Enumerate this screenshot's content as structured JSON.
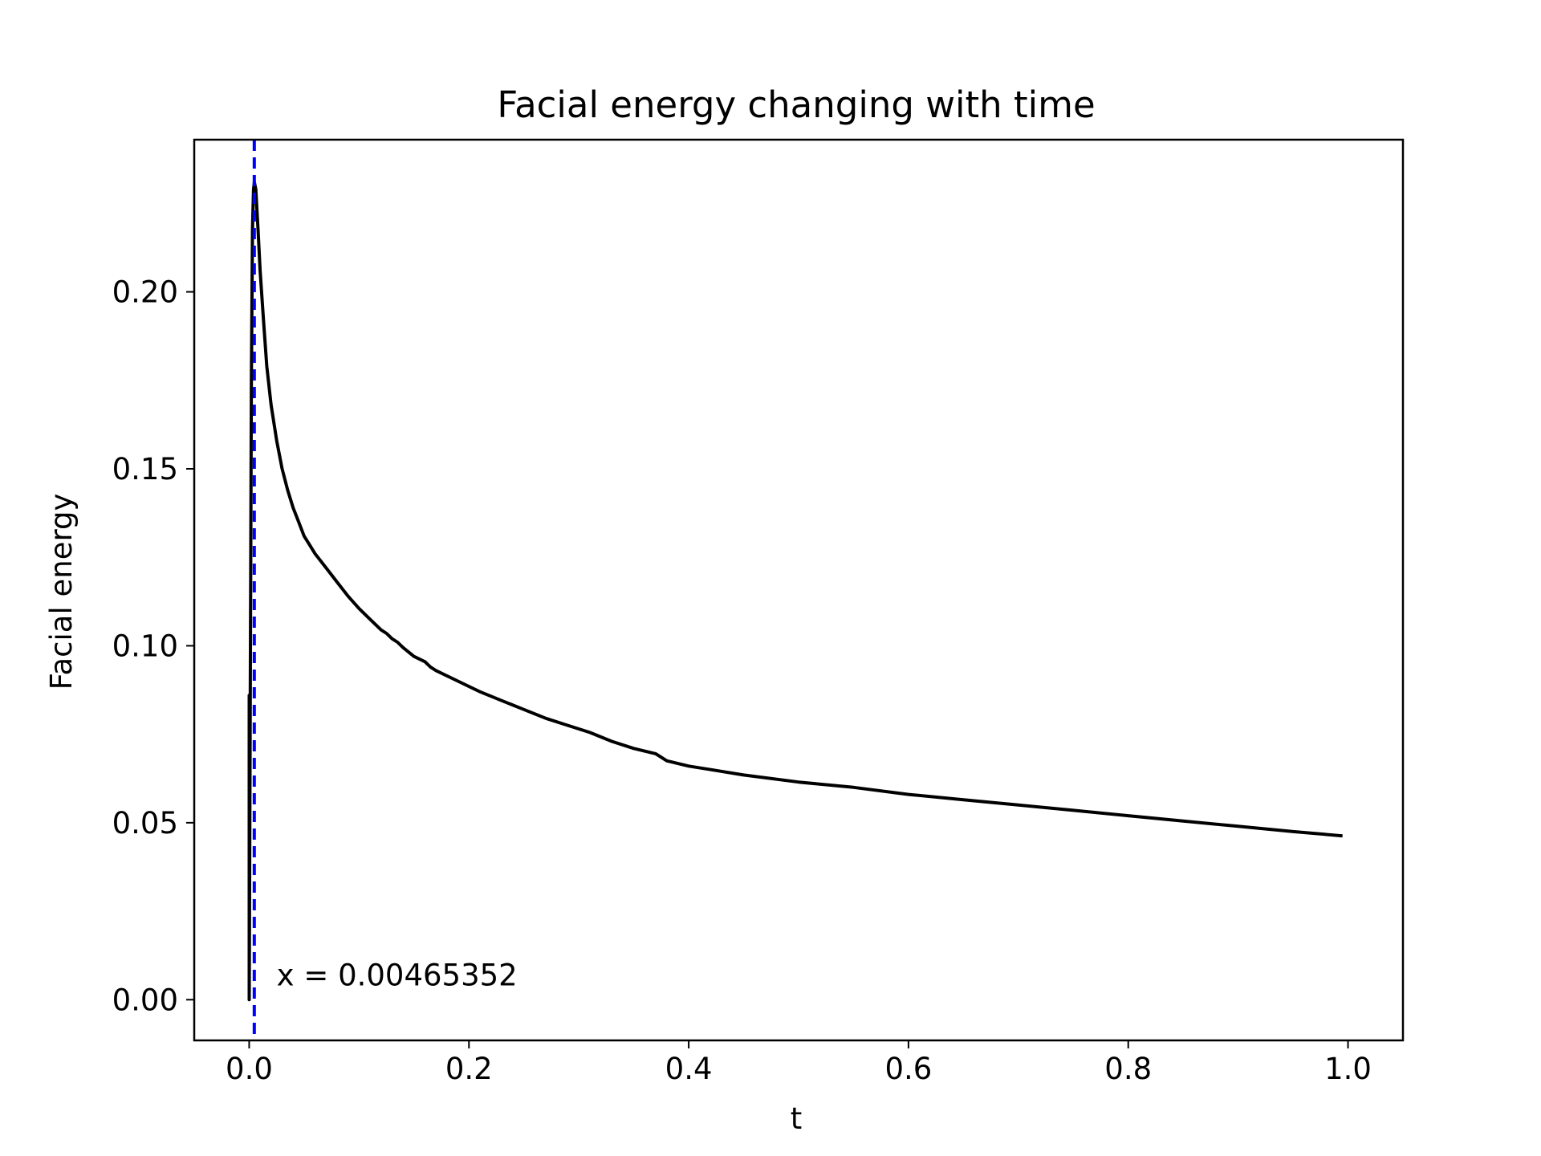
{
  "chart_data": {
    "type": "line",
    "title": "Facial energy changing with time",
    "xlabel": "t",
    "ylabel": "Facial energy",
    "xlim": [
      -0.05,
      1.05
    ],
    "ylim": [
      -0.0115,
      0.243
    ],
    "xticks": [
      0.0,
      0.2,
      0.4,
      0.6,
      0.8,
      1.0
    ],
    "xtick_labels": [
      "0.0",
      "0.2",
      "0.4",
      "0.6",
      "0.8",
      "1.0"
    ],
    "yticks": [
      0.0,
      0.05,
      0.1,
      0.15,
      0.2
    ],
    "ytick_labels": [
      "0.00",
      "0.05",
      "0.10",
      "0.15",
      "0.20"
    ],
    "grid": false,
    "series": [
      {
        "color": "#000000",
        "x": [
          0.0,
          0.0,
          0.0,
          0.001,
          0.002,
          0.003,
          0.004,
          0.0047,
          0.006,
          0.008,
          0.01,
          0.013,
          0.016,
          0.02,
          0.025,
          0.03,
          0.035,
          0.04,
          0.045,
          0.05,
          0.055,
          0.06,
          0.07,
          0.08,
          0.09,
          0.1,
          0.11,
          0.12,
          0.125,
          0.13,
          0.135,
          0.14,
          0.15,
          0.16,
          0.165,
          0.17,
          0.19,
          0.21,
          0.23,
          0.25,
          0.27,
          0.29,
          0.31,
          0.33,
          0.35,
          0.37,
          0.375,
          0.38,
          0.4,
          0.42,
          0.45,
          0.5,
          0.55,
          0.6,
          0.65,
          0.7,
          0.75,
          0.8,
          0.85,
          0.9,
          0.95,
          0.995
        ],
        "y": [
          0.001,
          0.086,
          0.0,
          0.085,
          0.175,
          0.218,
          0.229,
          0.231,
          0.229,
          0.218,
          0.206,
          0.192,
          0.179,
          0.168,
          0.158,
          0.15,
          0.144,
          0.139,
          0.135,
          0.131,
          0.1285,
          0.126,
          0.122,
          0.118,
          0.114,
          0.1105,
          0.1075,
          0.1045,
          0.1035,
          0.102,
          0.101,
          0.0995,
          0.097,
          0.0955,
          0.094,
          0.093,
          0.09,
          0.087,
          0.0845,
          0.082,
          0.0795,
          0.0775,
          0.0755,
          0.073,
          0.071,
          0.0695,
          0.0685,
          0.0675,
          0.066,
          0.065,
          0.0635,
          0.0615,
          0.06,
          0.058,
          0.0565,
          0.055,
          0.0535,
          0.052,
          0.0505,
          0.049,
          0.0475,
          0.0463
        ]
      }
    ],
    "vline": {
      "x": 0.00465352,
      "color": "#0000ff",
      "style": "dashed"
    },
    "annotation": {
      "text": "x = 0.00465352",
      "x": 0.025,
      "y": 0.004
    }
  }
}
